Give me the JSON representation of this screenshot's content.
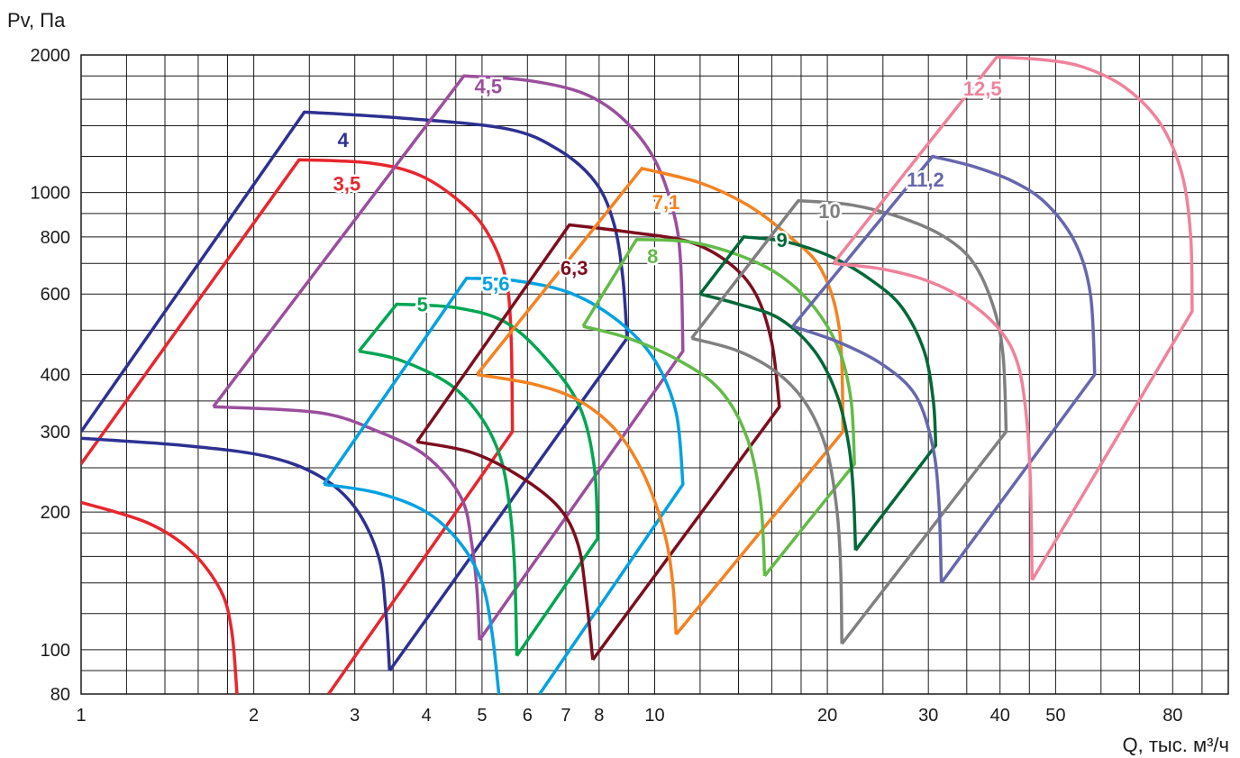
{
  "chart_data": {
    "type": "line",
    "title": "",
    "xlabel": "Q, тыс. м³/ч",
    "ylabel": "Pv, Па",
    "xscale": "log",
    "yscale": "log",
    "xlim": [
      1,
      100
    ],
    "ylim": [
      80,
      2000
    ],
    "grid": true,
    "x_ticks": [
      {
        "value": 1,
        "label": "1"
      },
      {
        "value": 2,
        "label": "2"
      },
      {
        "value": 3,
        "label": "3"
      },
      {
        "value": 4,
        "label": "4"
      },
      {
        "value": 5,
        "label": "5"
      },
      {
        "value": 6,
        "label": "6"
      },
      {
        "value": 7,
        "label": "7"
      },
      {
        "value": 8,
        "label": "8"
      },
      {
        "value": 10,
        "label": "10"
      },
      {
        "value": 20,
        "label": "20"
      },
      {
        "value": 30,
        "label": "30"
      },
      {
        "value": 40,
        "label": "40"
      },
      {
        "value": 50,
        "label": "50"
      },
      {
        "value": 80,
        "label": "80"
      }
    ],
    "y_ticks": [
      {
        "value": 80,
        "label": "80"
      },
      {
        "value": 100,
        "label": "100"
      },
      {
        "value": 200,
        "label": "200"
      },
      {
        "value": 300,
        "label": "300"
      },
      {
        "value": 400,
        "label": "400"
      },
      {
        "value": 600,
        "label": "600"
      },
      {
        "value": 800,
        "label": "800"
      },
      {
        "value": 1000,
        "label": "1000"
      },
      {
        "value": 2000,
        "label": "2000"
      }
    ],
    "x_grid": [
      1.2,
      1.4,
      1.6,
      1.8,
      2,
      2.5,
      3,
      3.5,
      4,
      4.5,
      5,
      6,
      7,
      8,
      9,
      10,
      12,
      14,
      16,
      18,
      20,
      25,
      30,
      35,
      40,
      45,
      50,
      60,
      70,
      80,
      90,
      100
    ],
    "y_grid": [
      80,
      90,
      100,
      120,
      140,
      160,
      180,
      200,
      250,
      300,
      350,
      400,
      500,
      600,
      700,
      800,
      900,
      1000,
      1200,
      1400,
      1600,
      1800,
      2000
    ],
    "series": [
      {
        "name": "3,5",
        "color": "#e8262d",
        "label_at": [
          2.75,
          1010
        ],
        "curve": [
          [
            1.0,
            210
          ],
          [
            1.3,
            190
          ],
          [
            1.55,
            165
          ],
          [
            1.75,
            135
          ],
          [
            1.83,
            110
          ],
          [
            1.87,
            80
          ]
        ],
        "envelope": [
          [
            1.0,
            255
          ],
          [
            2.4,
            1180
          ],
          [
            3.2,
            1160
          ],
          [
            3.9,
            1090
          ],
          [
            4.6,
            950
          ],
          [
            5.1,
            820
          ],
          [
            5.5,
            650
          ],
          [
            5.62,
            480
          ],
          [
            5.65,
            300
          ],
          [
            2.7,
            80
          ]
        ]
      },
      {
        "name": "4",
        "color": "#2e3192",
        "label_at": [
          2.8,
          1260
        ],
        "curve": [
          [
            1.0,
            290
          ],
          [
            1.5,
            280
          ],
          [
            2.1,
            265
          ],
          [
            2.6,
            240
          ],
          [
            3.0,
            205
          ],
          [
            3.3,
            160
          ],
          [
            3.4,
            120
          ],
          [
            3.45,
            90
          ]
        ],
        "envelope": [
          [
            1.0,
            300
          ],
          [
            2.45,
            1500
          ],
          [
            3.5,
            1460
          ],
          [
            5.5,
            1380
          ],
          [
            6.8,
            1240
          ],
          [
            7.9,
            1050
          ],
          [
            8.5,
            850
          ],
          [
            8.8,
            650
          ],
          [
            8.95,
            480
          ],
          [
            3.45,
            90
          ]
        ]
      },
      {
        "name": "4,5",
        "color": "#9b4e9e",
        "label_at": [
          4.85,
          1650
        ],
        "curve": [
          [
            1.7,
            340
          ],
          [
            2.6,
            330
          ],
          [
            3.3,
            300
          ],
          [
            4.0,
            265
          ],
          [
            4.6,
            215
          ],
          [
            4.8,
            170
          ],
          [
            4.9,
            135
          ],
          [
            4.95,
            105
          ]
        ],
        "envelope": [
          [
            1.7,
            340
          ],
          [
            4.65,
            1800
          ],
          [
            6.0,
            1760
          ],
          [
            7.5,
            1650
          ],
          [
            8.8,
            1450
          ],
          [
            10.0,
            1180
          ],
          [
            10.8,
            900
          ],
          [
            11.1,
            700
          ],
          [
            11.2,
            450
          ],
          [
            4.95,
            105
          ]
        ]
      },
      {
        "name": "5",
        "color": "#00a651",
        "label_at": [
          3.85,
          550
        ],
        "curve": [
          [
            3.05,
            450
          ],
          [
            3.6,
            430
          ],
          [
            4.4,
            380
          ],
          [
            5.0,
            320
          ],
          [
            5.4,
            260
          ],
          [
            5.6,
            200
          ],
          [
            5.7,
            150
          ],
          [
            5.75,
            97
          ]
        ],
        "envelope": [
          [
            3.05,
            450
          ],
          [
            3.55,
            570
          ],
          [
            4.5,
            560
          ],
          [
            5.5,
            520
          ],
          [
            6.5,
            430
          ],
          [
            7.4,
            340
          ],
          [
            7.85,
            250
          ],
          [
            7.95,
            175
          ],
          [
            5.75,
            97
          ]
        ]
      },
      {
        "name": "5,6",
        "color": "#00a2e2",
        "label_at": [
          5.0,
          610
        ],
        "curve": [
          [
            2.65,
            230
          ],
          [
            3.3,
            220
          ],
          [
            4.0,
            200
          ],
          [
            4.6,
            170
          ],
          [
            5.0,
            140
          ],
          [
            5.2,
            110
          ],
          [
            5.35,
            80
          ]
        ],
        "envelope": [
          [
            2.65,
            230
          ],
          [
            4.7,
            650
          ],
          [
            5.8,
            640
          ],
          [
            7.2,
            600
          ],
          [
            8.7,
            520
          ],
          [
            10.0,
            430
          ],
          [
            10.9,
            330
          ],
          [
            11.2,
            230
          ],
          [
            6.3,
            80
          ]
        ]
      },
      {
        "name": "6,3",
        "color": "#7d0e1e",
        "label_at": [
          6.85,
          660
        ],
        "curve": [
          [
            3.85,
            285
          ],
          [
            4.8,
            270
          ],
          [
            5.8,
            240
          ],
          [
            6.8,
            205
          ],
          [
            7.35,
            170
          ],
          [
            7.6,
            130
          ],
          [
            7.8,
            95
          ]
        ],
        "envelope": [
          [
            3.85,
            285
          ],
          [
            7.1,
            850
          ],
          [
            9.0,
            820
          ],
          [
            11.5,
            780
          ],
          [
            13.5,
            700
          ],
          [
            15.0,
            600
          ],
          [
            16.0,
            470
          ],
          [
            16.5,
            340
          ],
          [
            7.8,
            95
          ]
        ]
      },
      {
        "name": "7,1",
        "color": "#f58220",
        "label_at": [
          9.9,
          920
        ],
        "curve": [
          [
            4.9,
            400
          ],
          [
            6.2,
            380
          ],
          [
            7.4,
            350
          ],
          [
            8.6,
            300
          ],
          [
            9.6,
            240
          ],
          [
            10.4,
            180
          ],
          [
            10.75,
            140
          ],
          [
            10.9,
            108
          ]
        ],
        "envelope": [
          [
            4.9,
            400
          ],
          [
            9.5,
            1130
          ],
          [
            12.0,
            1050
          ],
          [
            14.5,
            940
          ],
          [
            17.0,
            810
          ],
          [
            19.5,
            680
          ],
          [
            21.0,
            500
          ],
          [
            21.3,
            300
          ],
          [
            10.9,
            108
          ]
        ]
      },
      {
        "name": "8",
        "color": "#62bb46",
        "label_at": [
          9.7,
          700
        ],
        "curve": [
          [
            7.5,
            510
          ],
          [
            9.0,
            480
          ],
          [
            11.0,
            430
          ],
          [
            13.0,
            370
          ],
          [
            14.5,
            290
          ],
          [
            15.3,
            210
          ],
          [
            15.55,
            145
          ]
        ],
        "envelope": [
          [
            7.5,
            510
          ],
          [
            9.3,
            790
          ],
          [
            11.5,
            780
          ],
          [
            14.0,
            730
          ],
          [
            16.5,
            660
          ],
          [
            19.0,
            560
          ],
          [
            21.0,
            450
          ],
          [
            22.0,
            350
          ],
          [
            22.3,
            255
          ],
          [
            15.55,
            145
          ]
        ]
      },
      {
        "name": "9",
        "color": "#006838",
        "label_at": [
          16.3,
          760
        ],
        "curve": [
          [
            12.0,
            600
          ],
          [
            14.0,
            570
          ],
          [
            16.5,
            530
          ],
          [
            19.0,
            450
          ],
          [
            20.8,
            360
          ],
          [
            21.8,
            280
          ],
          [
            22.2,
            220
          ],
          [
            22.4,
            165
          ]
        ],
        "envelope": [
          [
            12.0,
            600
          ],
          [
            14.3,
            800
          ],
          [
            17.0,
            780
          ],
          [
            20.5,
            720
          ],
          [
            24.0,
            640
          ],
          [
            27.0,
            560
          ],
          [
            29.5,
            450
          ],
          [
            30.6,
            350
          ],
          [
            30.9,
            280
          ],
          [
            22.4,
            165
          ]
        ]
      },
      {
        "name": "10",
        "color": "#808080",
        "label_at": [
          19.3,
          880
        ],
        "curve": [
          [
            11.6,
            480
          ],
          [
            14.0,
            450
          ],
          [
            16.5,
            400
          ],
          [
            18.5,
            340
          ],
          [
            20.0,
            270
          ],
          [
            20.8,
            200
          ],
          [
            21.1,
            150
          ],
          [
            21.2,
            103
          ]
        ],
        "envelope": [
          [
            11.6,
            480
          ],
          [
            17.8,
            960
          ],
          [
            22.0,
            940
          ],
          [
            27.0,
            880
          ],
          [
            32.0,
            800
          ],
          [
            36.0,
            700
          ],
          [
            39.0,
            560
          ],
          [
            40.5,
            440
          ],
          [
            41.0,
            300
          ],
          [
            21.2,
            103
          ]
        ]
      },
      {
        "name": "11,2",
        "color": "#6667ad",
        "label_at": [
          27.5,
          1030
        ],
        "curve": [
          [
            17.4,
            510
          ],
          [
            21.0,
            470
          ],
          [
            25.0,
            420
          ],
          [
            28.5,
            360
          ],
          [
            30.5,
            280
          ],
          [
            31.3,
            210
          ],
          [
            31.6,
            140
          ]
        ],
        "envelope": [
          [
            17.4,
            510
          ],
          [
            30.5,
            1200
          ],
          [
            36.0,
            1140
          ],
          [
            42.0,
            1060
          ],
          [
            48.0,
            950
          ],
          [
            54.0,
            780
          ],
          [
            57.5,
            600
          ],
          [
            58.5,
            400
          ],
          [
            31.6,
            140
          ]
        ]
      },
      {
        "name": "12,5",
        "color": "#f0829b",
        "label_at": [
          34.5,
          1630
        ],
        "curve": [
          [
            20.5,
            700
          ],
          [
            25.0,
            680
          ],
          [
            30.0,
            640
          ],
          [
            35.0,
            580
          ],
          [
            40.0,
            500
          ],
          [
            43.0,
            420
          ],
          [
            44.5,
            320
          ],
          [
            45.2,
            230
          ],
          [
            45.5,
            142
          ]
        ],
        "envelope": [
          [
            20.5,
            700
          ],
          [
            39.5,
            1980
          ],
          [
            48.0,
            1950
          ],
          [
            56.0,
            1880
          ],
          [
            66.0,
            1700
          ],
          [
            76.0,
            1420
          ],
          [
            83.0,
            1100
          ],
          [
            86.0,
            800
          ],
          [
            86.5,
            550
          ],
          [
            45.5,
            142
          ]
        ]
      }
    ]
  }
}
